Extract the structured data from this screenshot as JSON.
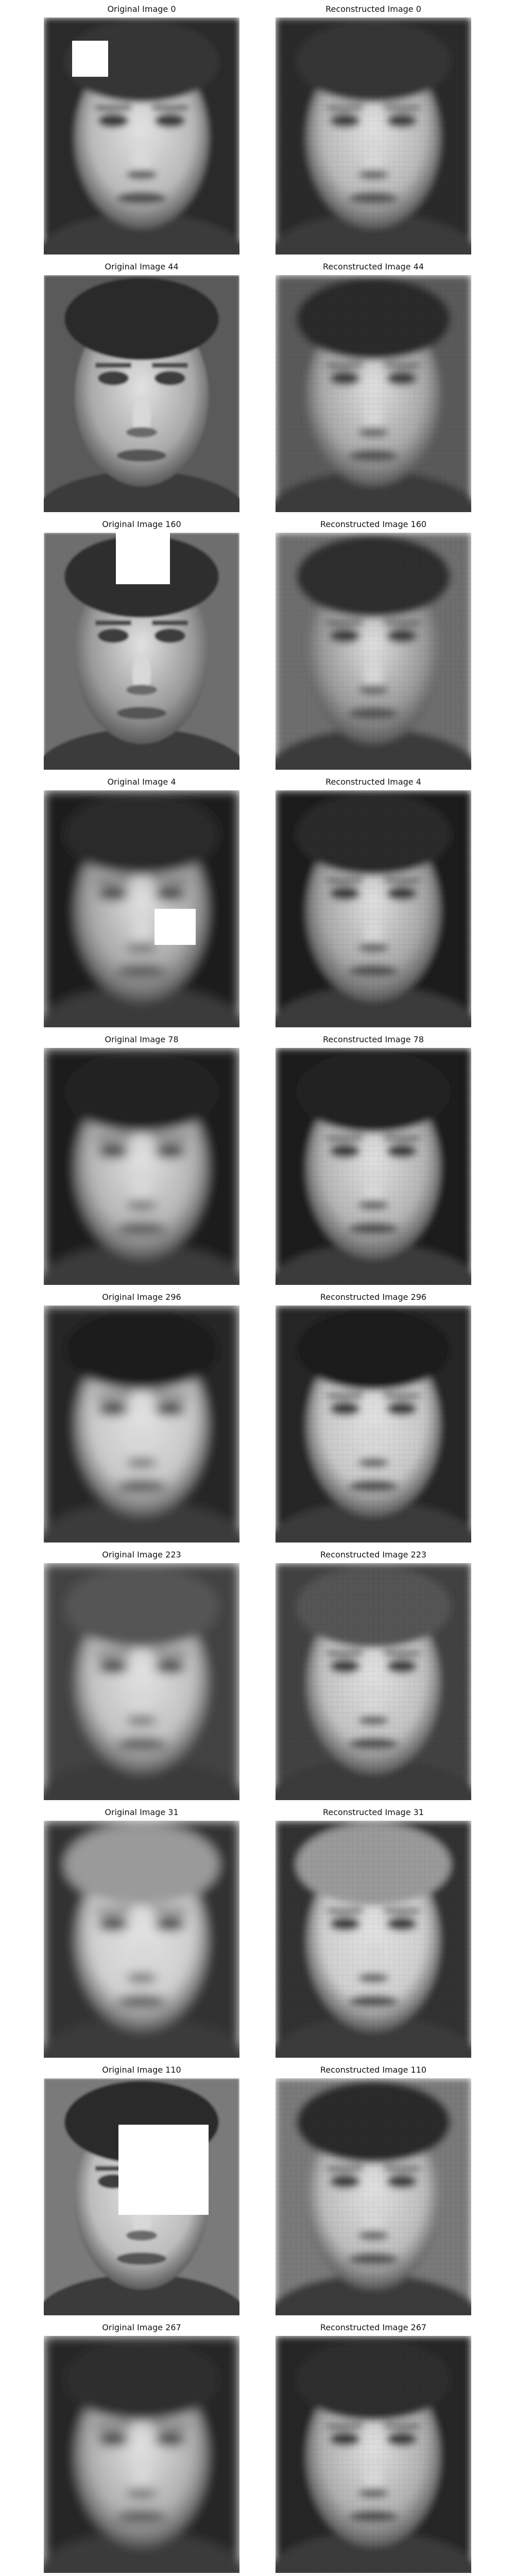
{
  "figure": {
    "rows": [
      {
        "original": {
          "label": "Original Image 0",
          "occlusion": "small-upper-left",
          "blur": "medium"
        },
        "reconstructed": {
          "label": "Reconstructed Image 0"
        }
      },
      {
        "original": {
          "label": "Original Image 44",
          "occlusion": "none",
          "blur": "sharp"
        },
        "reconstructed": {
          "label": "Reconstructed Image 44"
        }
      },
      {
        "original": {
          "label": "Original Image 160",
          "occlusion": "top-forehead",
          "blur": "sharp"
        },
        "reconstructed": {
          "label": "Reconstructed Image 160"
        }
      },
      {
        "original": {
          "label": "Original Image 4",
          "occlusion": "small-right-cheek",
          "blur": "heavy"
        },
        "reconstructed": {
          "label": "Reconstructed Image 4"
        }
      },
      {
        "original": {
          "label": "Original Image 78",
          "occlusion": "none",
          "blur": "heavy"
        },
        "reconstructed": {
          "label": "Reconstructed Image 78"
        }
      },
      {
        "original": {
          "label": "Original Image 296",
          "occlusion": "none",
          "blur": "heavy"
        },
        "reconstructed": {
          "label": "Reconstructed Image 296"
        }
      },
      {
        "original": {
          "label": "Original Image 223",
          "occlusion": "none",
          "blur": "heavy"
        },
        "reconstructed": {
          "label": "Reconstructed Image 223"
        }
      },
      {
        "original": {
          "label": "Original Image 31",
          "occlusion": "none",
          "blur": "heavy"
        },
        "reconstructed": {
          "label": "Reconstructed Image 31"
        }
      },
      {
        "original": {
          "label": "Original Image 110",
          "occlusion": "large-center",
          "blur": "sharp"
        },
        "reconstructed": {
          "label": "Reconstructed Image 110"
        }
      },
      {
        "original": {
          "label": "Original Image 267",
          "occlusion": "none",
          "blur": "heavy"
        },
        "reconstructed": {
          "label": "Reconstructed Image 267"
        }
      }
    ]
  }
}
